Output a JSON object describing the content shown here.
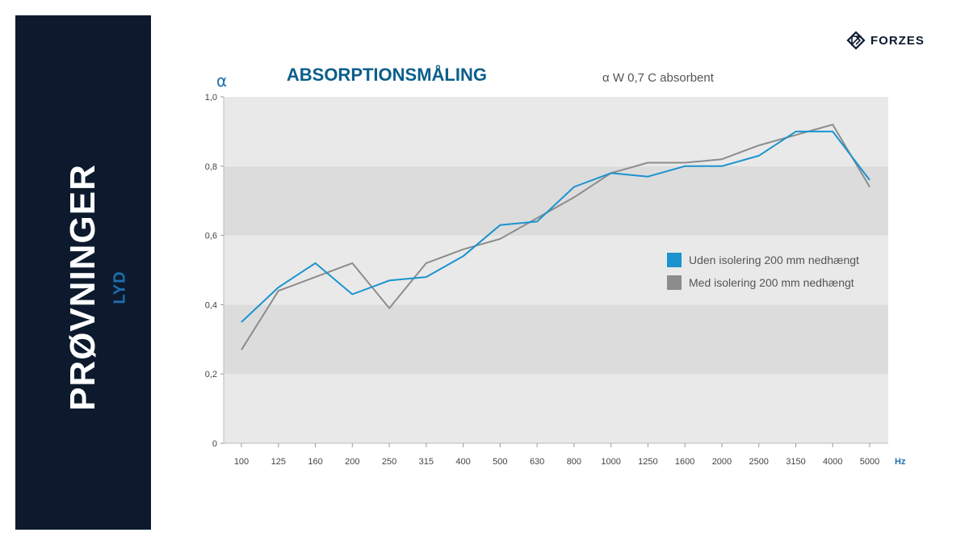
{
  "sidebar": {
    "title": "PRØVNINGER",
    "subtitle": "LYD",
    "bg_color": "#0d1a2e",
    "sub_color": "#1d6fb0"
  },
  "logo": {
    "text": "FORZES",
    "icon": "forzes-logo-icon"
  },
  "chart_data": {
    "type": "line",
    "title": "ABSORPTIONSMÅLING",
    "subtitle": "α W 0,7 C absorbent",
    "ylabel": "α",
    "xlabel": "Hz",
    "categories": [
      "100",
      "125",
      "160",
      "200",
      "250",
      "315",
      "400",
      "500",
      "630",
      "800",
      "1000",
      "1250",
      "1600",
      "2000",
      "2500",
      "3150",
      "4000",
      "5000"
    ],
    "ylim": [
      0,
      1
    ],
    "yticks": [
      {
        "value": 0,
        "label": "0"
      },
      {
        "value": 0.2,
        "label": "0,2"
      },
      {
        "value": 0.4,
        "label": "0,4"
      },
      {
        "value": 0.6,
        "label": "0,6"
      },
      {
        "value": 0.8,
        "label": "0,8"
      },
      {
        "value": 1.0,
        "label": "1,0"
      }
    ],
    "grid": "alternating horizontal bands",
    "legend_position": "right",
    "series": [
      {
        "name": "Uden isolering 200 mm nedhængt",
        "color": "#1a93d0",
        "values": [
          0.35,
          0.45,
          0.52,
          0.43,
          0.47,
          0.48,
          0.54,
          0.63,
          0.64,
          0.74,
          0.78,
          0.77,
          0.8,
          0.8,
          0.83,
          0.9,
          0.9,
          0.76
        ]
      },
      {
        "name": "Med isolering 200 mm nedhængt",
        "color": "#8c8c8c",
        "values": [
          0.27,
          0.44,
          0.48,
          0.52,
          0.39,
          0.52,
          0.56,
          0.59,
          0.65,
          0.71,
          0.78,
          0.81,
          0.81,
          0.82,
          0.86,
          0.89,
          0.92,
          0.74
        ]
      }
    ]
  }
}
